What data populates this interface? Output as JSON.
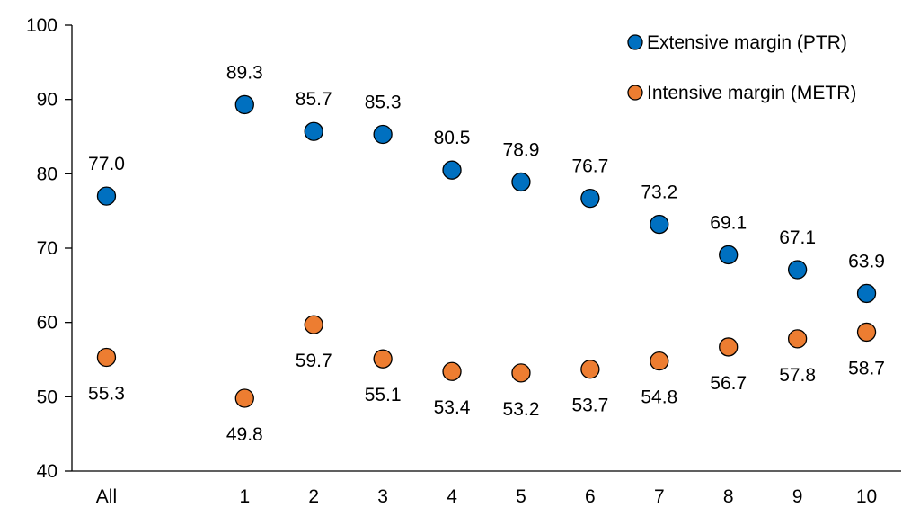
{
  "chart_data": {
    "type": "scatter",
    "title": "",
    "xlabel": "",
    "ylabel": "",
    "categories": [
      "All",
      "",
      "1",
      "2",
      "3",
      "4",
      "5",
      "6",
      "7",
      "8",
      "9",
      "10"
    ],
    "ylim": [
      40,
      100
    ],
    "yticks": [
      40,
      50,
      60,
      70,
      80,
      90,
      100
    ],
    "grid": false,
    "legend_position": "top-right",
    "series": [
      {
        "name": "Extensive margin (PTR)",
        "color": "#0070C0",
        "label_position": "above",
        "values": [
          77.0,
          null,
          89.3,
          85.7,
          85.3,
          80.5,
          78.9,
          76.7,
          73.2,
          69.1,
          67.1,
          63.9
        ]
      },
      {
        "name": "Intensive margin (METR)",
        "color": "#ED7D31",
        "label_position": "below",
        "values": [
          55.3,
          null,
          49.8,
          59.7,
          55.1,
          53.4,
          53.2,
          53.7,
          54.8,
          56.7,
          57.8,
          58.7
        ]
      }
    ]
  }
}
